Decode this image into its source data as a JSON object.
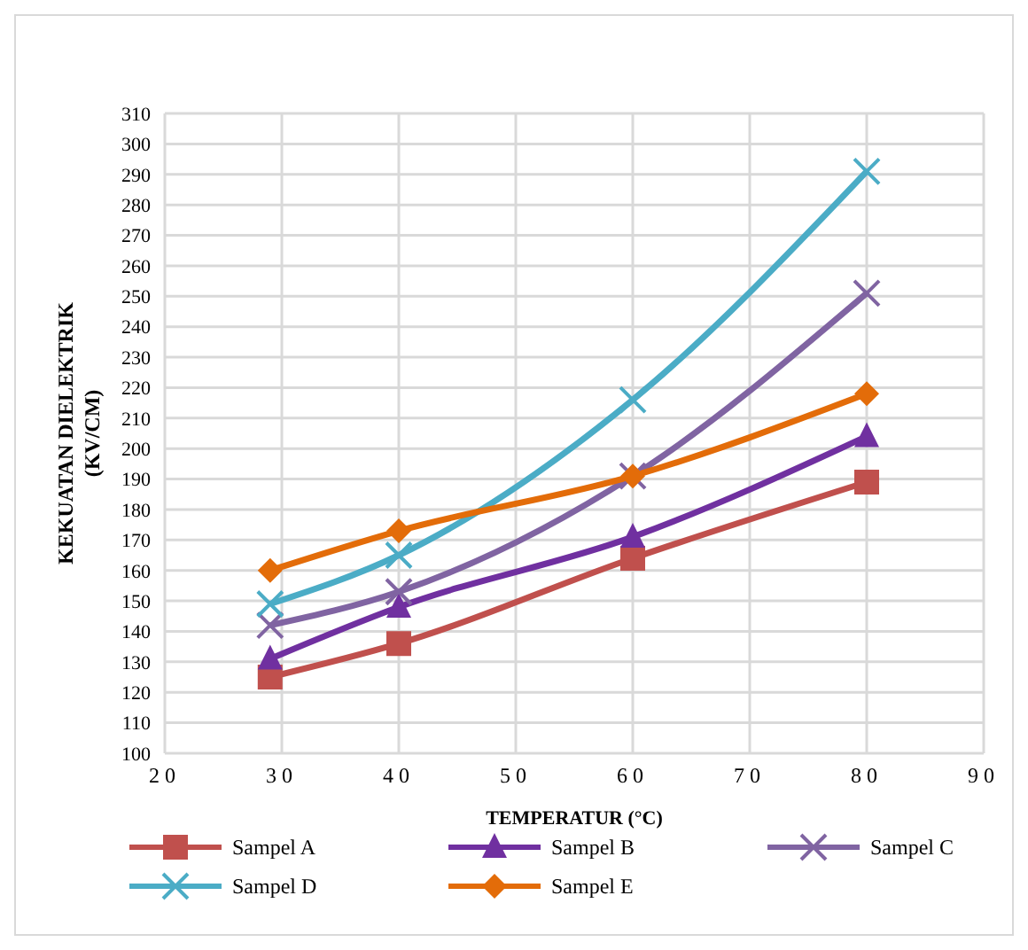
{
  "chart_data": {
    "type": "line",
    "xlabel": "TEMPERATUR (°C)",
    "ylabel": "KEKUATAN DIELEKTRIK (KV/CM)",
    "x": [
      29,
      40,
      60,
      80
    ],
    "series": [
      {
        "name": "Sampel A",
        "color": "#c0504d",
        "marker": "square",
        "values": [
          125,
          136,
          164,
          189
        ]
      },
      {
        "name": "Sampel B",
        "color": "#7030a0",
        "marker": "triangle",
        "values": [
          131,
          148,
          171,
          204
        ]
      },
      {
        "name": "Sampel C",
        "color": "#8064a2",
        "marker": "cross",
        "values": [
          142,
          153,
          191,
          251
        ]
      },
      {
        "name": "Sampel D",
        "color": "#4bacc6",
        "marker": "cross",
        "values": [
          149,
          165,
          216,
          291
        ]
      },
      {
        "name": "Sampel E",
        "color": "#e36c09",
        "marker": "diamond",
        "values": [
          160,
          173,
          191,
          218
        ]
      }
    ],
    "xlim": [
      20,
      90
    ],
    "xticks": [
      20,
      30,
      40,
      50,
      60,
      70,
      80,
      90
    ],
    "ylim": [
      100,
      310
    ],
    "yticks": [
      100,
      110,
      120,
      130,
      140,
      150,
      160,
      170,
      180,
      190,
      200,
      210,
      220,
      230,
      240,
      250,
      260,
      270,
      280,
      290,
      300,
      310
    ],
    "grid": true,
    "legend": "bottom"
  }
}
